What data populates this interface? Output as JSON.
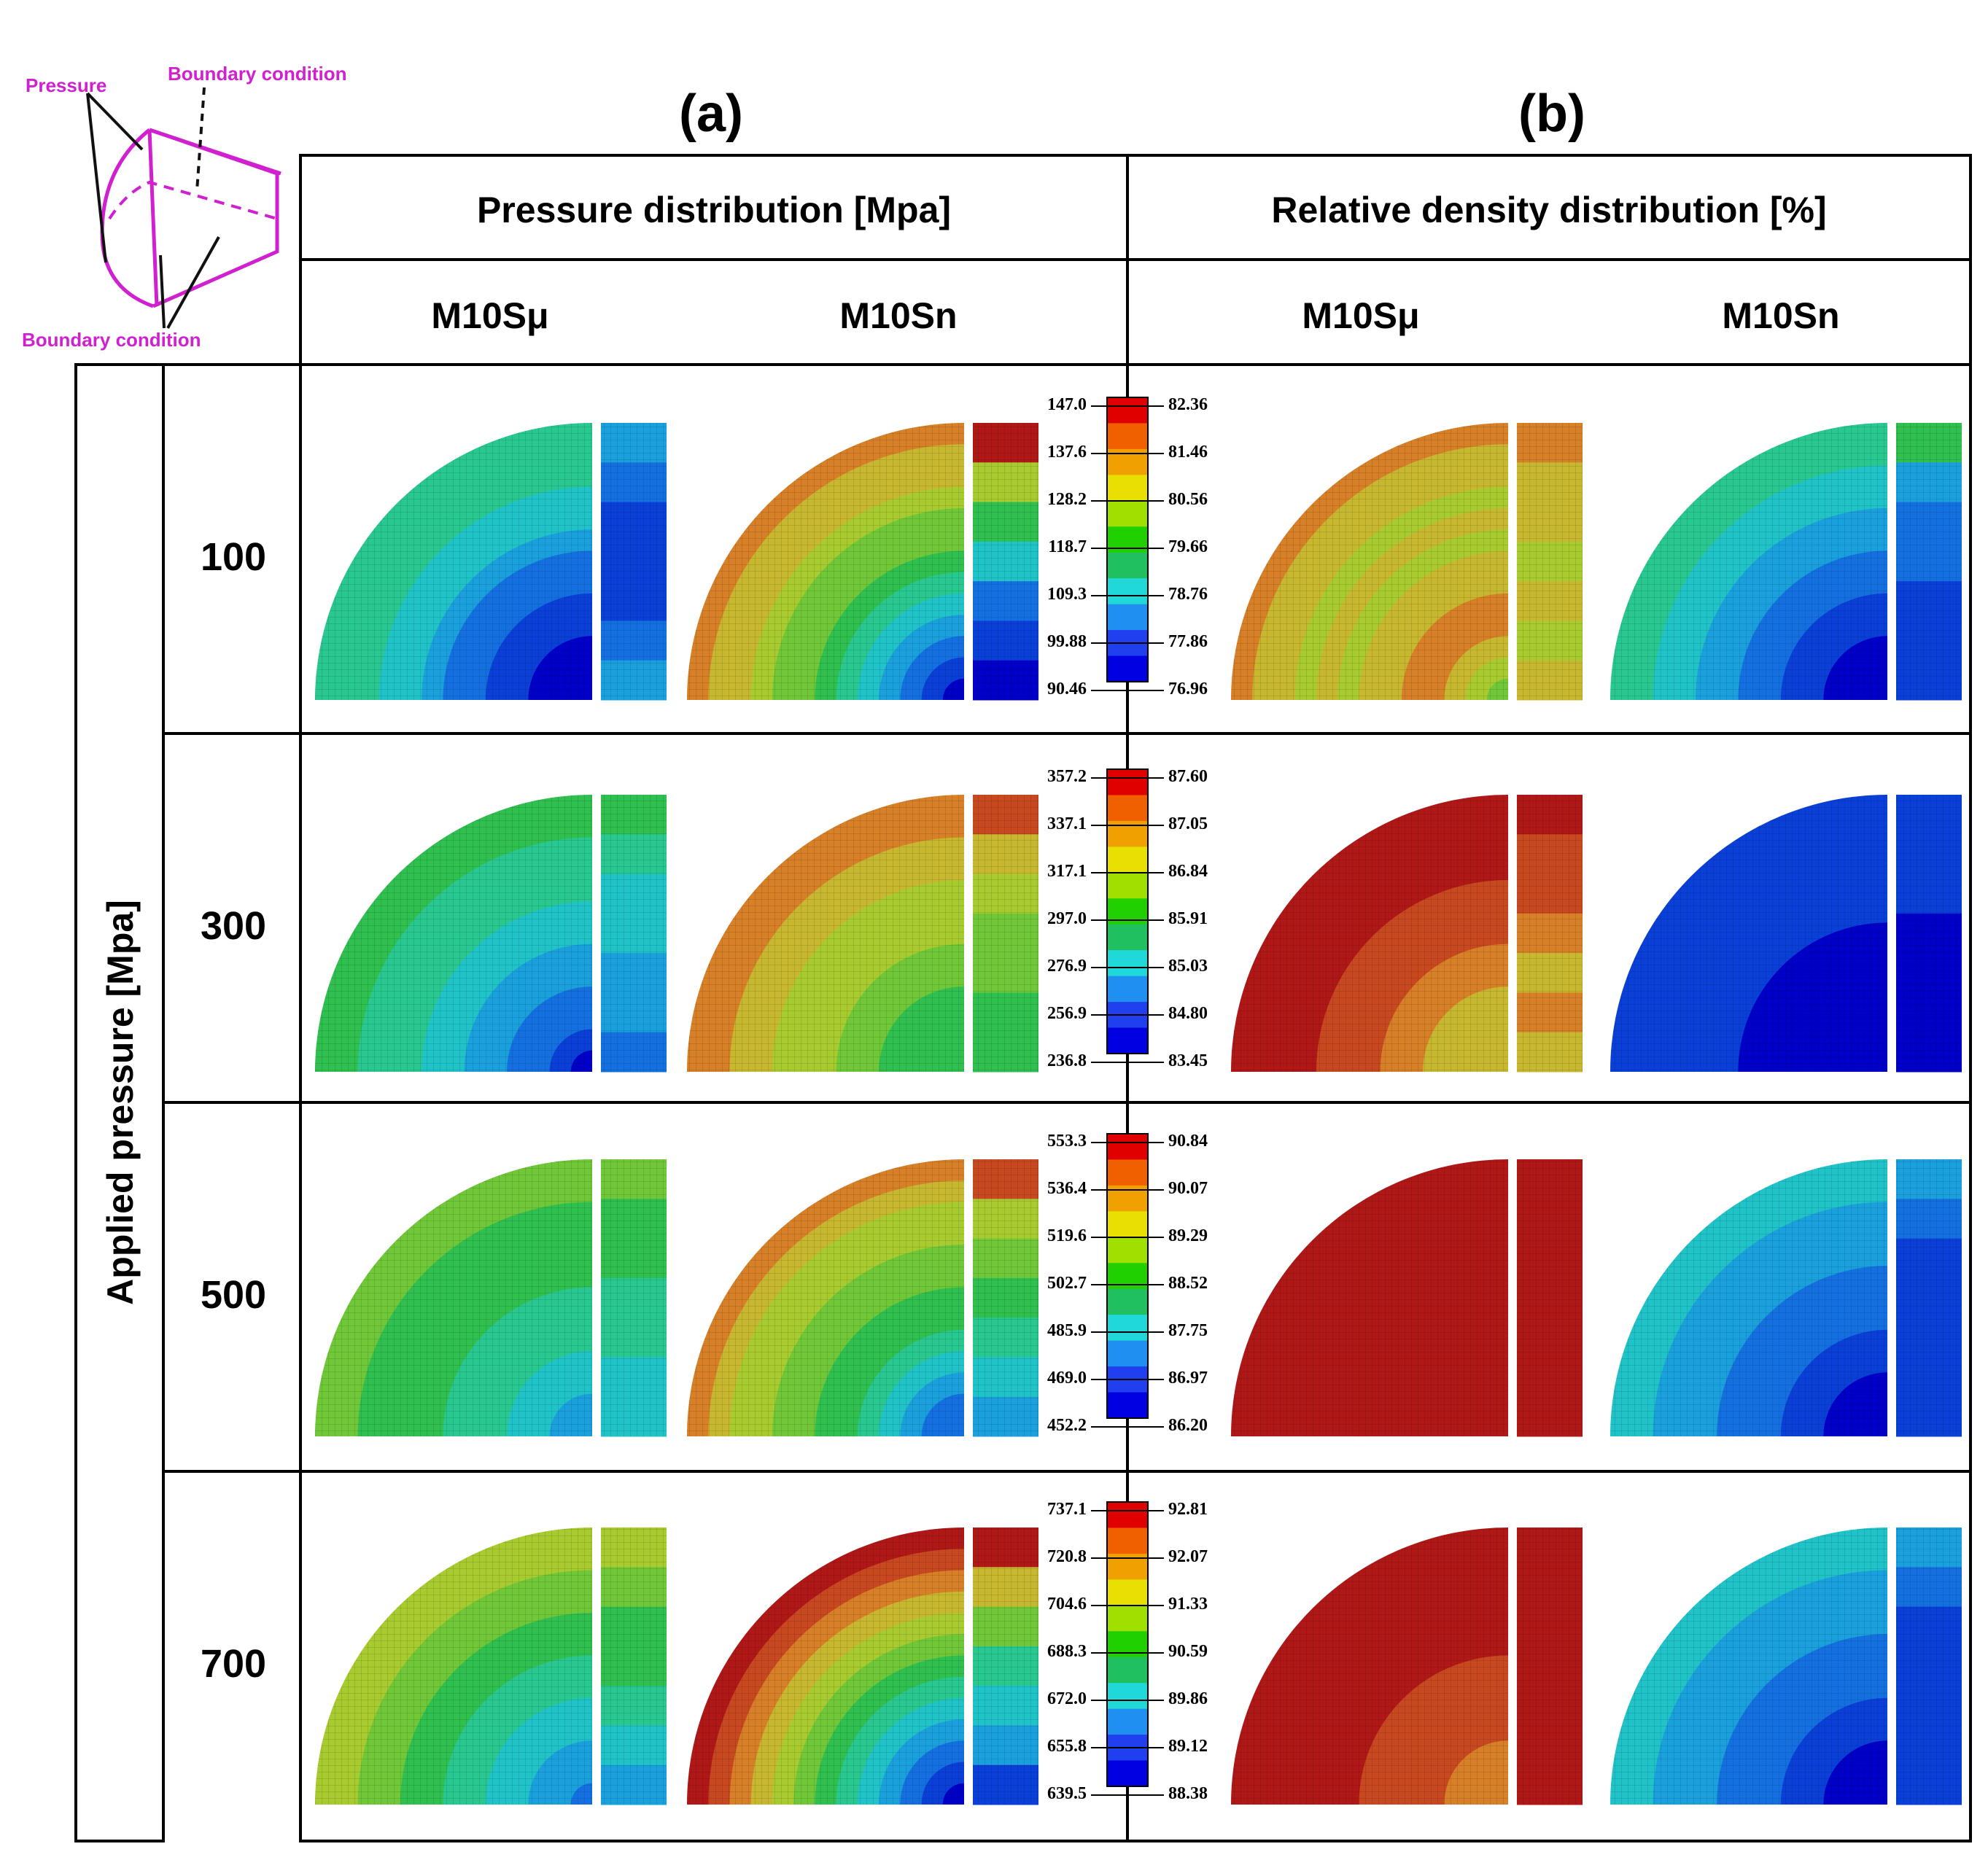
{
  "schematic": {
    "pressure_label": "Pressure",
    "boundary_top_label": "Boundary condition",
    "boundary_bottom_label": "Boundary condition"
  },
  "panels": {
    "a_label": "(a)",
    "b_label": "(b)",
    "a_title": "Pressure distribution [Mpa]",
    "b_title": "Relative density distribution [%]"
  },
  "materials": [
    "M10Sμ",
    "M10Sn",
    "M10Sμ",
    "M10Sn"
  ],
  "row_axis_label": "Applied pressure [Mpa]",
  "rows": [
    {
      "pressure": "100",
      "pressure_scale": [
        "147.0",
        "137.6",
        "128.2",
        "118.7",
        "109.3",
        "99.88",
        "90.46"
      ],
      "density_scale": [
        "82.36",
        "81.46",
        "80.56",
        "79.66",
        "78.76",
        "77.86",
        "76.96"
      ],
      "maps": [
        {
          "bands": [
            5,
            5,
            5,
            4,
            4,
            3,
            2,
            2,
            1,
            1,
            0,
            0,
            0
          ],
          "strip": [
            3,
            2,
            1,
            1,
            1,
            2,
            3
          ]
        },
        {
          "bands": [
            10,
            9,
            9,
            8,
            7,
            7,
            6,
            5,
            4,
            3,
            2,
            1,
            0
          ],
          "strip": [
            12,
            8,
            6,
            4,
            2,
            1,
            0
          ]
        },
        {
          "bands": [
            10,
            9,
            9,
            8,
            9,
            8,
            9,
            9,
            10,
            10,
            9,
            8,
            7
          ],
          "strip": [
            10,
            9,
            9,
            8,
            9,
            8,
            9
          ]
        },
        {
          "bands": [
            5,
            5,
            4,
            4,
            3,
            3,
            2,
            2,
            1,
            1,
            0,
            0,
            0
          ],
          "strip": [
            6,
            3,
            2,
            2,
            1,
            1,
            1
          ]
        }
      ]
    },
    {
      "pressure": "300",
      "pressure_scale": [
        "357.2",
        "337.1",
        "317.1",
        "297.0",
        "276.9",
        "256.9",
        "236.8"
      ],
      "density_scale": [
        "87.60",
        "87.05",
        "86.84",
        "85.91",
        "85.03",
        "84.80",
        "83.45"
      ],
      "maps": [
        {
          "bands": [
            6,
            6,
            5,
            5,
            5,
            4,
            4,
            3,
            3,
            2,
            2,
            1,
            0
          ],
          "strip": [
            6,
            5,
            4,
            4,
            3,
            3,
            2
          ]
        },
        {
          "bands": [
            10,
            10,
            9,
            9,
            8,
            8,
            8,
            7,
            7,
            6,
            6,
            6,
            6
          ],
          "strip": [
            11,
            9,
            8,
            7,
            7,
            6,
            6
          ]
        },
        {
          "bands": [
            12,
            12,
            12,
            12,
            11,
            11,
            11,
            10,
            10,
            9,
            9,
            9,
            9
          ],
          "strip": [
            12,
            11,
            11,
            10,
            9,
            10,
            9
          ]
        },
        {
          "bands": [
            1,
            1,
            1,
            1,
            1,
            1,
            0,
            0,
            0,
            0,
            0,
            0,
            0
          ],
          "strip": [
            1,
            1,
            1,
            0,
            0,
            0,
            0
          ]
        }
      ]
    },
    {
      "pressure": "500",
      "pressure_scale": [
        "553.3",
        "536.4",
        "519.6",
        "502.7",
        "485.9",
        "469.0",
        "452.2"
      ],
      "density_scale": [
        "90.84",
        "90.07",
        "89.29",
        "88.52",
        "87.75",
        "86.97",
        "86.20"
      ],
      "maps": [
        {
          "bands": [
            7,
            7,
            6,
            6,
            6,
            6,
            5,
            5,
            5,
            4,
            4,
            3,
            3
          ],
          "strip": [
            7,
            6,
            6,
            5,
            5,
            4,
            4
          ]
        },
        {
          "bands": [
            10,
            9,
            8,
            8,
            7,
            7,
            6,
            6,
            5,
            4,
            3,
            2,
            2
          ],
          "strip": [
            11,
            8,
            7,
            6,
            5,
            4,
            3
          ]
        },
        {
          "bands": [
            12,
            12,
            12,
            12,
            12,
            12,
            12,
            12,
            12,
            12,
            12,
            12,
            12
          ],
          "strip": [
            12,
            12,
            12,
            12,
            12,
            12,
            12
          ]
        },
        {
          "bands": [
            4,
            4,
            3,
            3,
            3,
            2,
            2,
            2,
            1,
            1,
            0,
            0,
            0
          ],
          "strip": [
            3,
            2,
            1,
            1,
            1,
            1,
            1
          ]
        }
      ]
    },
    {
      "pressure": "700",
      "pressure_scale": [
        "737.1",
        "720.8",
        "704.6",
        "688.3",
        "672.0",
        "655.8",
        "639.5"
      ],
      "density_scale": [
        "92.81",
        "92.07",
        "91.33",
        "90.59",
        "89.86",
        "89.12",
        "88.38"
      ],
      "maps": [
        {
          "bands": [
            8,
            8,
            7,
            7,
            6,
            6,
            5,
            5,
            4,
            4,
            3,
            3,
            2
          ],
          "strip": [
            8,
            7,
            6,
            6,
            5,
            4,
            3
          ]
        },
        {
          "bands": [
            12,
            11,
            10,
            9,
            8,
            7,
            6,
            5,
            4,
            3,
            2,
            1,
            0
          ],
          "strip": [
            12,
            9,
            7,
            5,
            4,
            3,
            1
          ]
        },
        {
          "bands": [
            12,
            12,
            12,
            12,
            12,
            12,
            11,
            11,
            11,
            11,
            10,
            10,
            10
          ],
          "strip": [
            12,
            12,
            12,
            12,
            12,
            12,
            12
          ]
        },
        {
          "bands": [
            4,
            4,
            3,
            3,
            3,
            2,
            2,
            2,
            1,
            1,
            0,
            0,
            0
          ],
          "strip": [
            3,
            2,
            1,
            1,
            1,
            1,
            1
          ]
        }
      ]
    }
  ],
  "palette": [
    "#0000c8",
    "#0a40d8",
    "#1470e0",
    "#1aa0dc",
    "#20c4c8",
    "#28c890",
    "#30c050",
    "#70c838",
    "#a8cc30",
    "#c8b830",
    "#d88028",
    "#c84820",
    "#b01818"
  ],
  "scale_colors": [
    "#e00000",
    "#f06000",
    "#f0a000",
    "#e8e000",
    "#a0e000",
    "#20d000",
    "#20c060",
    "#20d8d8",
    "#2090f0",
    "#2040f0",
    "#0000e0"
  ]
}
